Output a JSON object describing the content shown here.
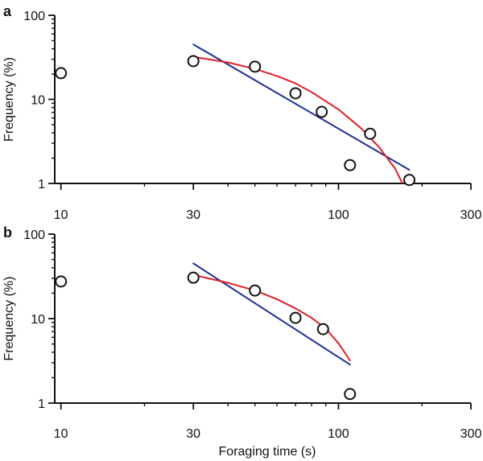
{
  "figure": {
    "shared_xlabel": "Foraging time (s)",
    "colors": {
      "axis": "#111111",
      "power_law_fit": "#1f2f8f",
      "curved_fit": "#e0202a",
      "markers": "#111111"
    }
  },
  "chart_data": [
    {
      "panel": "a",
      "type": "scatter",
      "xlabel": "",
      "ylabel": "Frequency (%)",
      "xscale": "log",
      "yscale": "log",
      "xlim": [
        9.5,
        300
      ],
      "ylim": [
        1,
        100
      ],
      "xticks": [
        10,
        30,
        100,
        300
      ],
      "xtick_labels": [
        "10",
        "30",
        "100",
        "300"
      ],
      "yticks": [
        1,
        10,
        100
      ],
      "ytick_labels": [
        "1",
        "10",
        "100"
      ],
      "grid": false,
      "legend": "none",
      "points": [
        {
          "x": 10,
          "y": 20.5
        },
        {
          "x": 30,
          "y": 28.5
        },
        {
          "x": 50,
          "y": 24.5
        },
        {
          "x": 70,
          "y": 11.8
        },
        {
          "x": 87,
          "y": 7.1
        },
        {
          "x": 110,
          "y": 1.65
        },
        {
          "x": 130,
          "y": 3.9
        },
        {
          "x": 180,
          "y": 1.1
        }
      ],
      "lines": [
        {
          "style": "straight power-law fit",
          "color": "#1f2f8f",
          "x": [
            30,
            180
          ],
          "y": [
            45,
            1.45
          ]
        },
        {
          "style": "curved fit",
          "color": "#e0202a",
          "x": [
            30,
            40,
            50,
            60,
            70,
            80,
            100,
            120,
            140,
            160,
            170
          ],
          "y": [
            32,
            27.5,
            23,
            19,
            15.5,
            12.2,
            7.6,
            4.6,
            2.7,
            1.5,
            1.0
          ]
        }
      ]
    },
    {
      "panel": "b",
      "type": "scatter",
      "xlabel": "Foraging time (s)",
      "ylabel": "Frequency (%)",
      "xscale": "log",
      "yscale": "log",
      "xlim": [
        9.5,
        300
      ],
      "ylim": [
        1,
        100
      ],
      "xticks": [
        10,
        30,
        100,
        300
      ],
      "xtick_labels": [
        "10",
        "30",
        "100",
        "300"
      ],
      "yticks": [
        1,
        10,
        100
      ],
      "ytick_labels": [
        "1",
        "10",
        "100"
      ],
      "grid": false,
      "legend": "none",
      "points": [
        {
          "x": 10,
          "y": 27.5
        },
        {
          "x": 30,
          "y": 30.5
        },
        {
          "x": 50,
          "y": 21.5
        },
        {
          "x": 70,
          "y": 10.2
        },
        {
          "x": 88,
          "y": 7.5
        },
        {
          "x": 110,
          "y": 1.28
        }
      ],
      "lines": [
        {
          "style": "straight power-law fit",
          "color": "#1f2f8f",
          "x": [
            30,
            110
          ],
          "y": [
            45,
            2.85
          ]
        },
        {
          "style": "curved fit",
          "color": "#e0202a",
          "x": [
            30,
            40,
            50,
            60,
            70,
            80,
            90,
            100,
            110
          ],
          "y": [
            33,
            26.5,
            21.5,
            17,
            13.2,
            10.2,
            7.6,
            5.1,
            3.2
          ]
        }
      ]
    }
  ]
}
